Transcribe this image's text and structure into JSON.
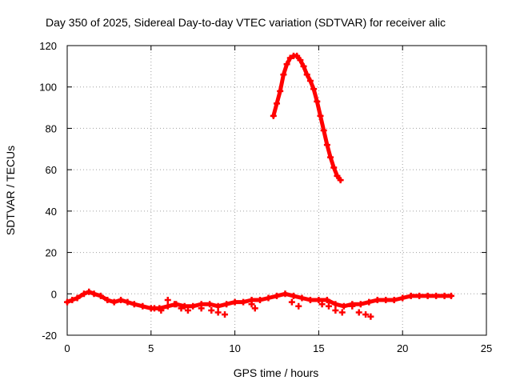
{
  "chart_data": {
    "type": "scatter",
    "title": "Day 350 of 2025, Sidereal Day-to-day VTEC variation (SDTVAR) for receiver alic",
    "xlabel": "GPS time / hours",
    "ylabel": "SDTVAR / TECUs",
    "xlim": [
      0,
      25
    ],
    "ylim": [
      -20,
      120
    ],
    "xticks": [
      0,
      5,
      10,
      15,
      20,
      25
    ],
    "yticks": [
      -20,
      0,
      20,
      40,
      60,
      80,
      100,
      120
    ],
    "grid": true,
    "marker_color": "#ff0000",
    "series": [
      {
        "name": "baseline",
        "x": [
          0,
          0.3,
          0.6,
          1.0,
          1.3,
          1.6,
          2.0,
          2.4,
          2.8,
          3.2,
          3.6,
          4.0,
          4.5,
          5.0,
          5.5,
          6.0,
          6.5,
          7.0,
          7.5,
          8.0,
          8.5,
          9.0,
          9.5,
          10.0,
          10.5,
          11.0,
          11.5,
          12.0,
          12.5,
          13.0,
          13.5,
          14.0,
          14.5,
          15.0,
          15.5,
          16.0,
          16.5,
          17.0,
          17.5,
          18.0,
          18.5,
          19.0,
          19.5,
          20.0,
          20.5,
          21.0,
          21.5,
          22.0,
          22.5,
          22.9
        ],
        "y": [
          -4,
          -3,
          -2,
          0,
          1,
          0,
          -1,
          -3,
          -4,
          -3,
          -4,
          -5,
          -6,
          -7,
          -7,
          -6,
          -5,
          -6,
          -6,
          -5,
          -5,
          -6,
          -5,
          -4,
          -4,
          -3,
          -3,
          -2,
          -1,
          0,
          -1,
          -2,
          -3,
          -3,
          -3,
          -5,
          -6,
          -5,
          -5,
          -4,
          -3,
          -3,
          -3,
          -2,
          -1,
          -1,
          -1,
          -1,
          -1,
          -1
        ]
      },
      {
        "name": "lower-scatter",
        "x": [
          5.2,
          5.6,
          6.0,
          6.4,
          6.8,
          7.2,
          8.0,
          8.6,
          9.0,
          9.4,
          11.0,
          11.2,
          13.4,
          13.8,
          15.2,
          15.6,
          16.0,
          16.4,
          17.0,
          17.4,
          17.8,
          18.1
        ],
        "y": [
          -7,
          -8,
          -3,
          -5,
          -7,
          -8,
          -7,
          -8,
          -9,
          -10,
          -5,
          -7,
          -4,
          -6,
          -5,
          -6,
          -8,
          -9,
          -6,
          -9,
          -10,
          -11
        ]
      },
      {
        "name": "peak-arc",
        "x": [
          12.3,
          12.5,
          12.7,
          12.9,
          13.1,
          13.3,
          13.5,
          13.7,
          13.9,
          14.1,
          14.3,
          14.5,
          14.7,
          14.9,
          15.1,
          15.3,
          15.5,
          15.7,
          15.9,
          16.1,
          16.3
        ],
        "y": [
          86,
          92,
          98,
          106,
          111,
          114,
          115,
          115,
          113,
          110,
          106,
          103,
          99,
          93,
          86,
          79,
          72,
          66,
          61,
          57,
          55
        ]
      }
    ]
  }
}
